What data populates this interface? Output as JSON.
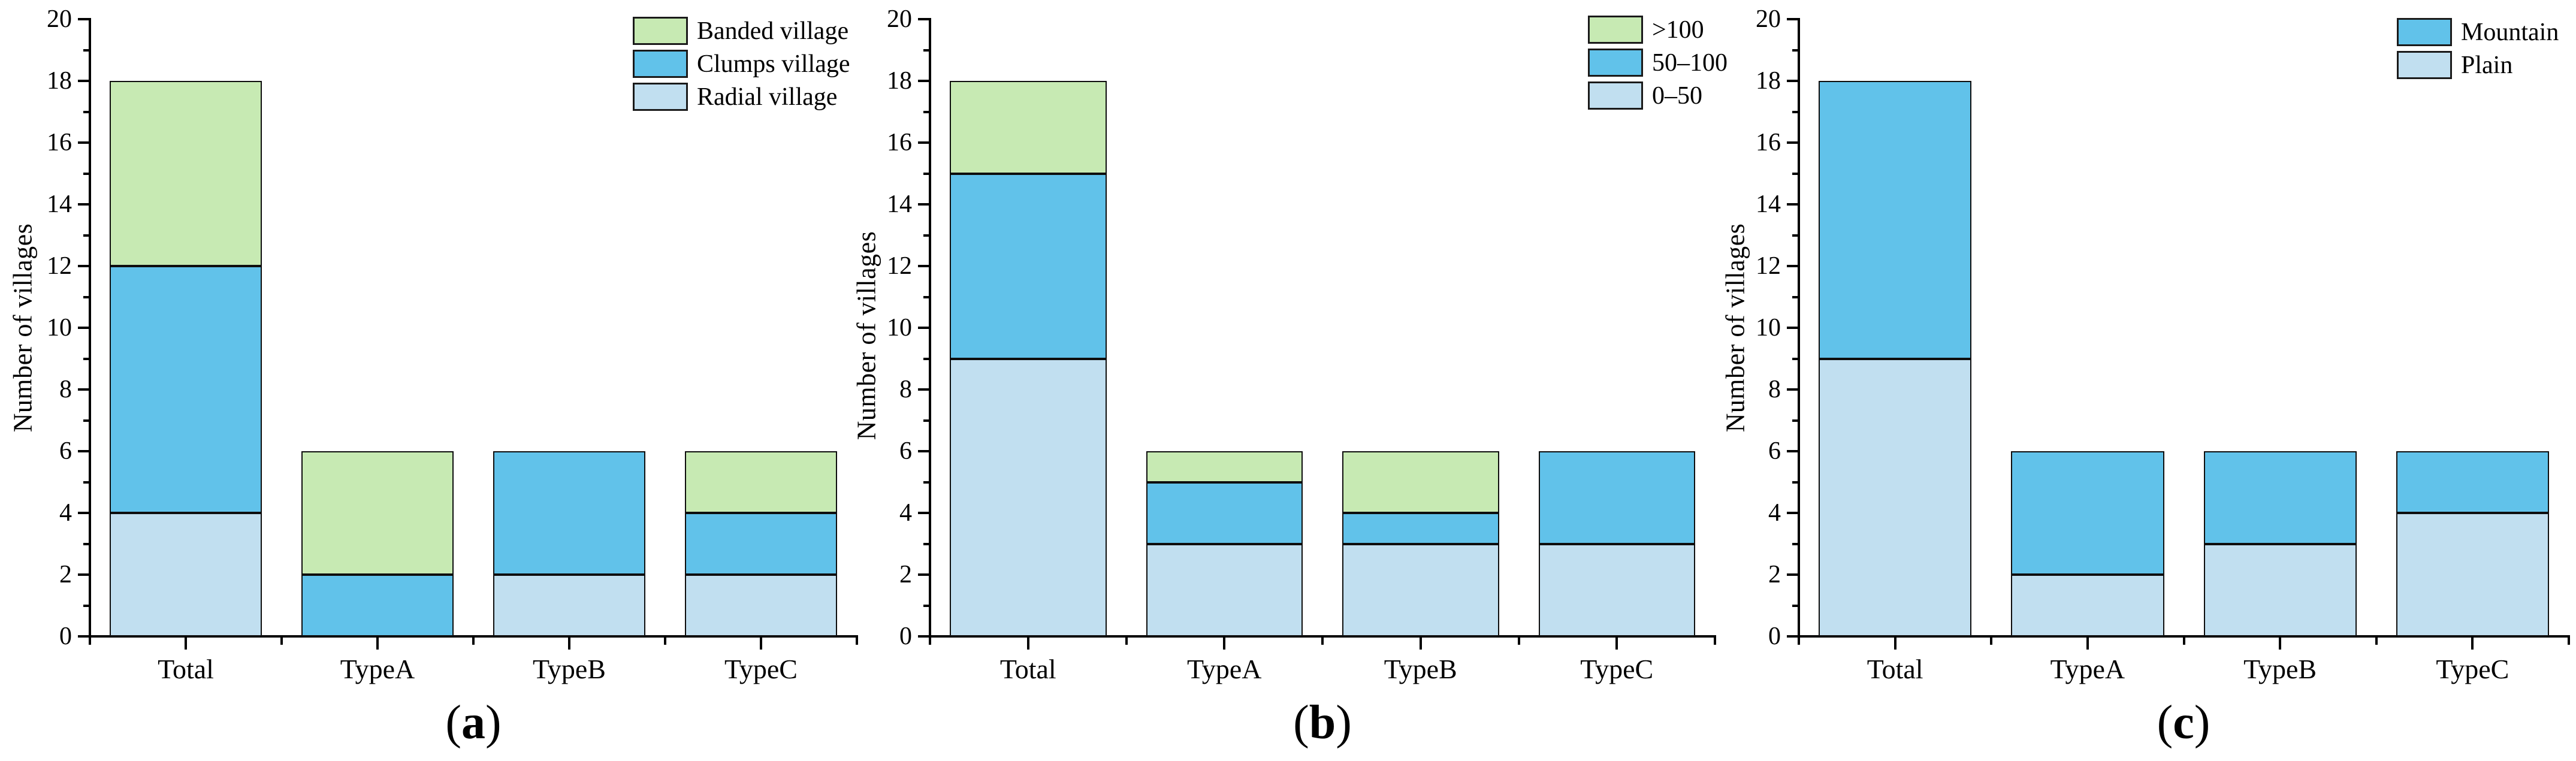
{
  "chart_data": [
    {
      "type": "bar",
      "stacked": true,
      "caption": {
        "open": "(",
        "letter": "a",
        "close": ")"
      },
      "ylabel": "Number of villages",
      "ylim": [
        0,
        20
      ],
      "yticks": [
        0,
        2,
        4,
        6,
        8,
        10,
        12,
        14,
        16,
        18,
        20
      ],
      "categories": [
        "Total",
        "TypeA",
        "TypeB",
        "TypeC"
      ],
      "series": [
        {
          "name": "Radial village",
          "color": "#c1dff0",
          "values": [
            4,
            0,
            2,
            2
          ]
        },
        {
          "name": "Clumps village",
          "color": "#61c2ea",
          "values": [
            8,
            2,
            4,
            2
          ]
        },
        {
          "name": "Banded village",
          "color": "#c7eab3",
          "values": [
            6,
            4,
            0,
            2
          ]
        }
      ],
      "legend_position": "top-right",
      "legend_order": "top-of-stack-first",
      "grid": false
    },
    {
      "type": "bar",
      "stacked": true,
      "caption": {
        "open": "(",
        "letter": "b",
        "close": ")"
      },
      "ylabel": "Number of villages",
      "ylim": [
        0,
        20
      ],
      "yticks": [
        0,
        2,
        4,
        6,
        8,
        10,
        12,
        14,
        16,
        18,
        20
      ],
      "categories": [
        "Total",
        "TypeA",
        "TypeB",
        "TypeC"
      ],
      "series": [
        {
          "name": "0–50",
          "color": "#c1dff0",
          "values": [
            9,
            3,
            3,
            3
          ]
        },
        {
          "name": "50–100",
          "color": "#61c2ea",
          "values": [
            6,
            2,
            1,
            3
          ]
        },
        {
          "name": ">100",
          "color": "#c7eab3",
          "values": [
            3,
            1,
            2,
            0
          ]
        }
      ],
      "legend_position": "top-right",
      "legend_order": "top-of-stack-first",
      "grid": false
    },
    {
      "type": "bar",
      "stacked": true,
      "caption": {
        "open": "(",
        "letter": "c",
        "close": ")"
      },
      "ylabel": "Number of villages",
      "ylim": [
        0,
        20
      ],
      "yticks": [
        0,
        2,
        4,
        6,
        8,
        10,
        12,
        14,
        16,
        18,
        20
      ],
      "categories": [
        "Total",
        "TypeA",
        "TypeB",
        "TypeC"
      ],
      "series": [
        {
          "name": "Plain",
          "color": "#c1dff0",
          "values": [
            9,
            2,
            3,
            4
          ]
        },
        {
          "name": "Mountain",
          "color": "#61c2ea",
          "values": [
            9,
            4,
            3,
            2
          ]
        }
      ],
      "legend_position": "top-right",
      "legend_order": "top-of-stack-first",
      "grid": false
    }
  ]
}
